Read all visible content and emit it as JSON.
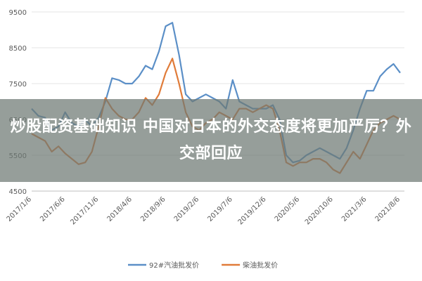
{
  "chart_data": {
    "type": "line",
    "headline": "炒股配资基础知识 中国对日本的外交态度将更加严厉？外交部回应",
    "categories": [
      "2017/1/6",
      null,
      null,
      null,
      null,
      "2017/6/6",
      null,
      null,
      null,
      null,
      "2017/11/6",
      null,
      null,
      null,
      null,
      "2018/4/6",
      null,
      null,
      null,
      null,
      "2018/9/6",
      null,
      null,
      null,
      null,
      "2019/2/6",
      null,
      null,
      null,
      null,
      "2019/7/6",
      null,
      null,
      null,
      null,
      "2019/12/6",
      null,
      null,
      null,
      null,
      "2020/5/6",
      null,
      null,
      null,
      null,
      "2020/10/6",
      null,
      null,
      null,
      null,
      "2021/3/6",
      null,
      null,
      null,
      null,
      "2021/8/6"
    ],
    "series": [
      {
        "name": "92#汽油批发价",
        "color": "#5b8fc7",
        "values": [
          6800,
          6600,
          6550,
          6200,
          6300,
          6700,
          6400,
          6300,
          6500,
          6300,
          6550,
          7000,
          7650,
          7600,
          7500,
          7500,
          7700,
          8000,
          7900,
          8400,
          9100,
          9200,
          8300,
          7200,
          7000,
          7100,
          7200,
          7100,
          7000,
          6800,
          7600,
          7000,
          6900,
          6800,
          6800,
          6800,
          6900,
          6500,
          5500,
          5300,
          5350,
          5500,
          5600,
          5700,
          5600,
          5500,
          5400,
          5700,
          6200,
          6800,
          7300,
          7300,
          7700,
          7900,
          8050,
          7800
        ]
      },
      {
        "name": "柴油批发价",
        "color": "#e07b39",
        "values": [
          6100,
          6000,
          5900,
          5600,
          5750,
          5550,
          5400,
          5250,
          5300,
          5600,
          6300,
          7100,
          6800,
          6600,
          6500,
          6500,
          6700,
          7100,
          6900,
          7200,
          7800,
          8200,
          7500,
          6700,
          6300,
          6200,
          6400,
          6500,
          6700,
          6600,
          6500,
          6800,
          6800,
          6700,
          6800,
          6900,
          6800,
          6200,
          5300,
          5200,
          5300,
          5300,
          5400,
          5400,
          5300,
          5100,
          5000,
          5300,
          5600,
          5400,
          5800,
          6200,
          6400,
          6500,
          6600,
          6500
        ]
      }
    ],
    "ylim": [
      4500,
      9500
    ],
    "yticks": [
      4500,
      5500,
      6500,
      7500,
      8500,
      9500
    ],
    "grid": true
  }
}
